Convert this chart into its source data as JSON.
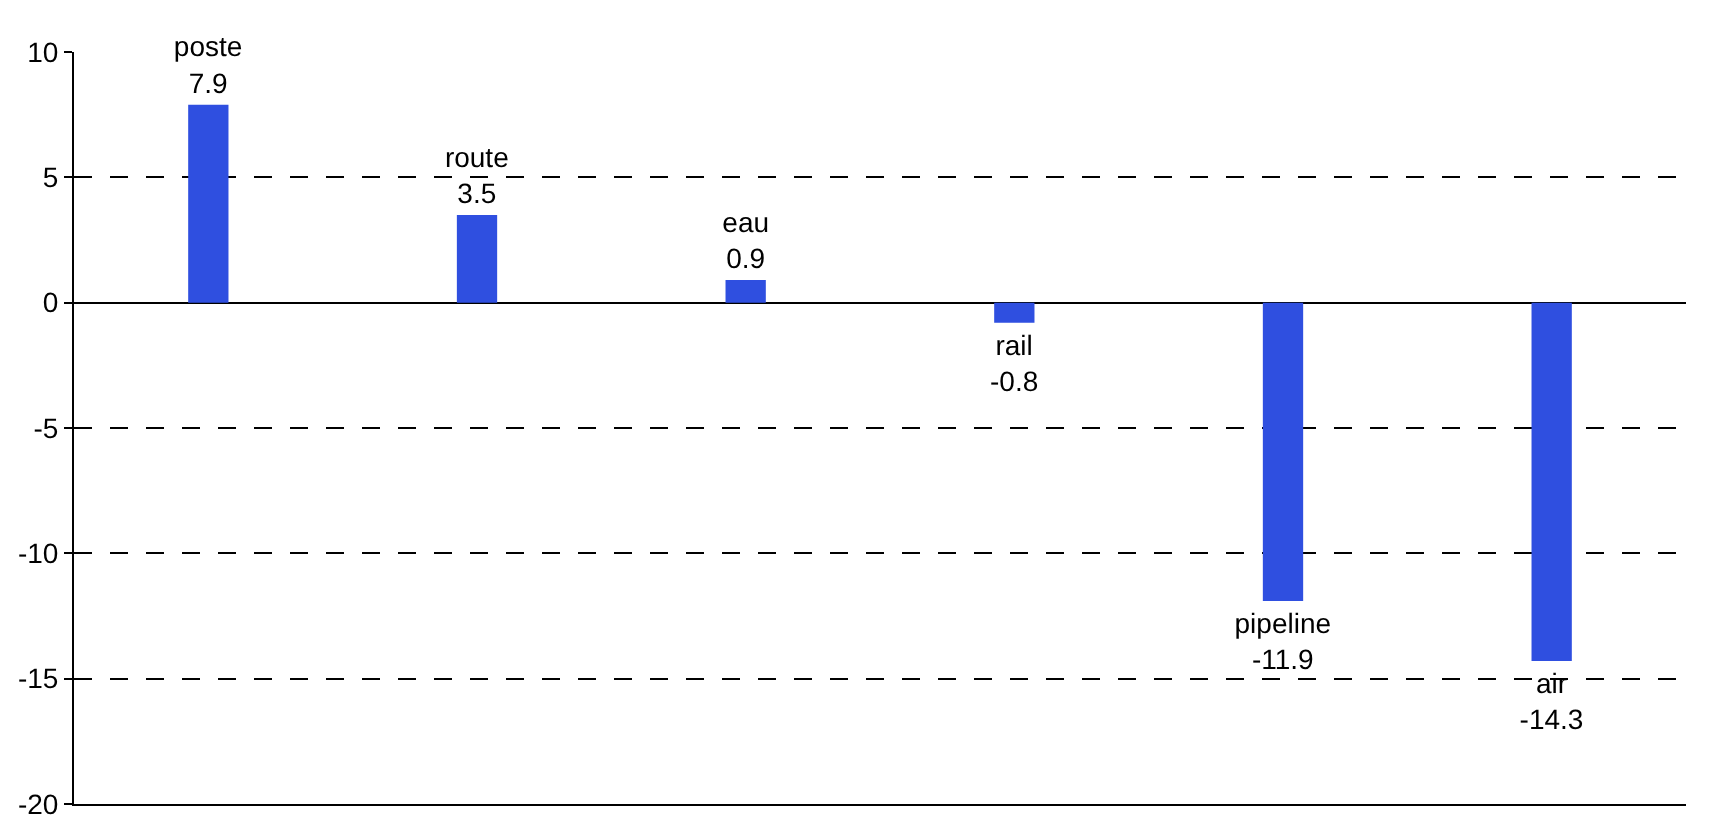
{
  "chart_data": {
    "type": "bar",
    "categories": [
      "poste",
      "route",
      "eau",
      "rail",
      "pipeline",
      "air"
    ],
    "values": [
      7.9,
      3.5,
      0.9,
      -0.8,
      -11.9,
      -14.3
    ],
    "color": "#2f4fe0",
    "ylim": [
      -20,
      10
    ],
    "yticks": [
      -20,
      -15,
      -10,
      -5,
      0,
      5,
      10
    ],
    "grid": "y",
    "data_labels": true,
    "tick_labels": "y"
  }
}
